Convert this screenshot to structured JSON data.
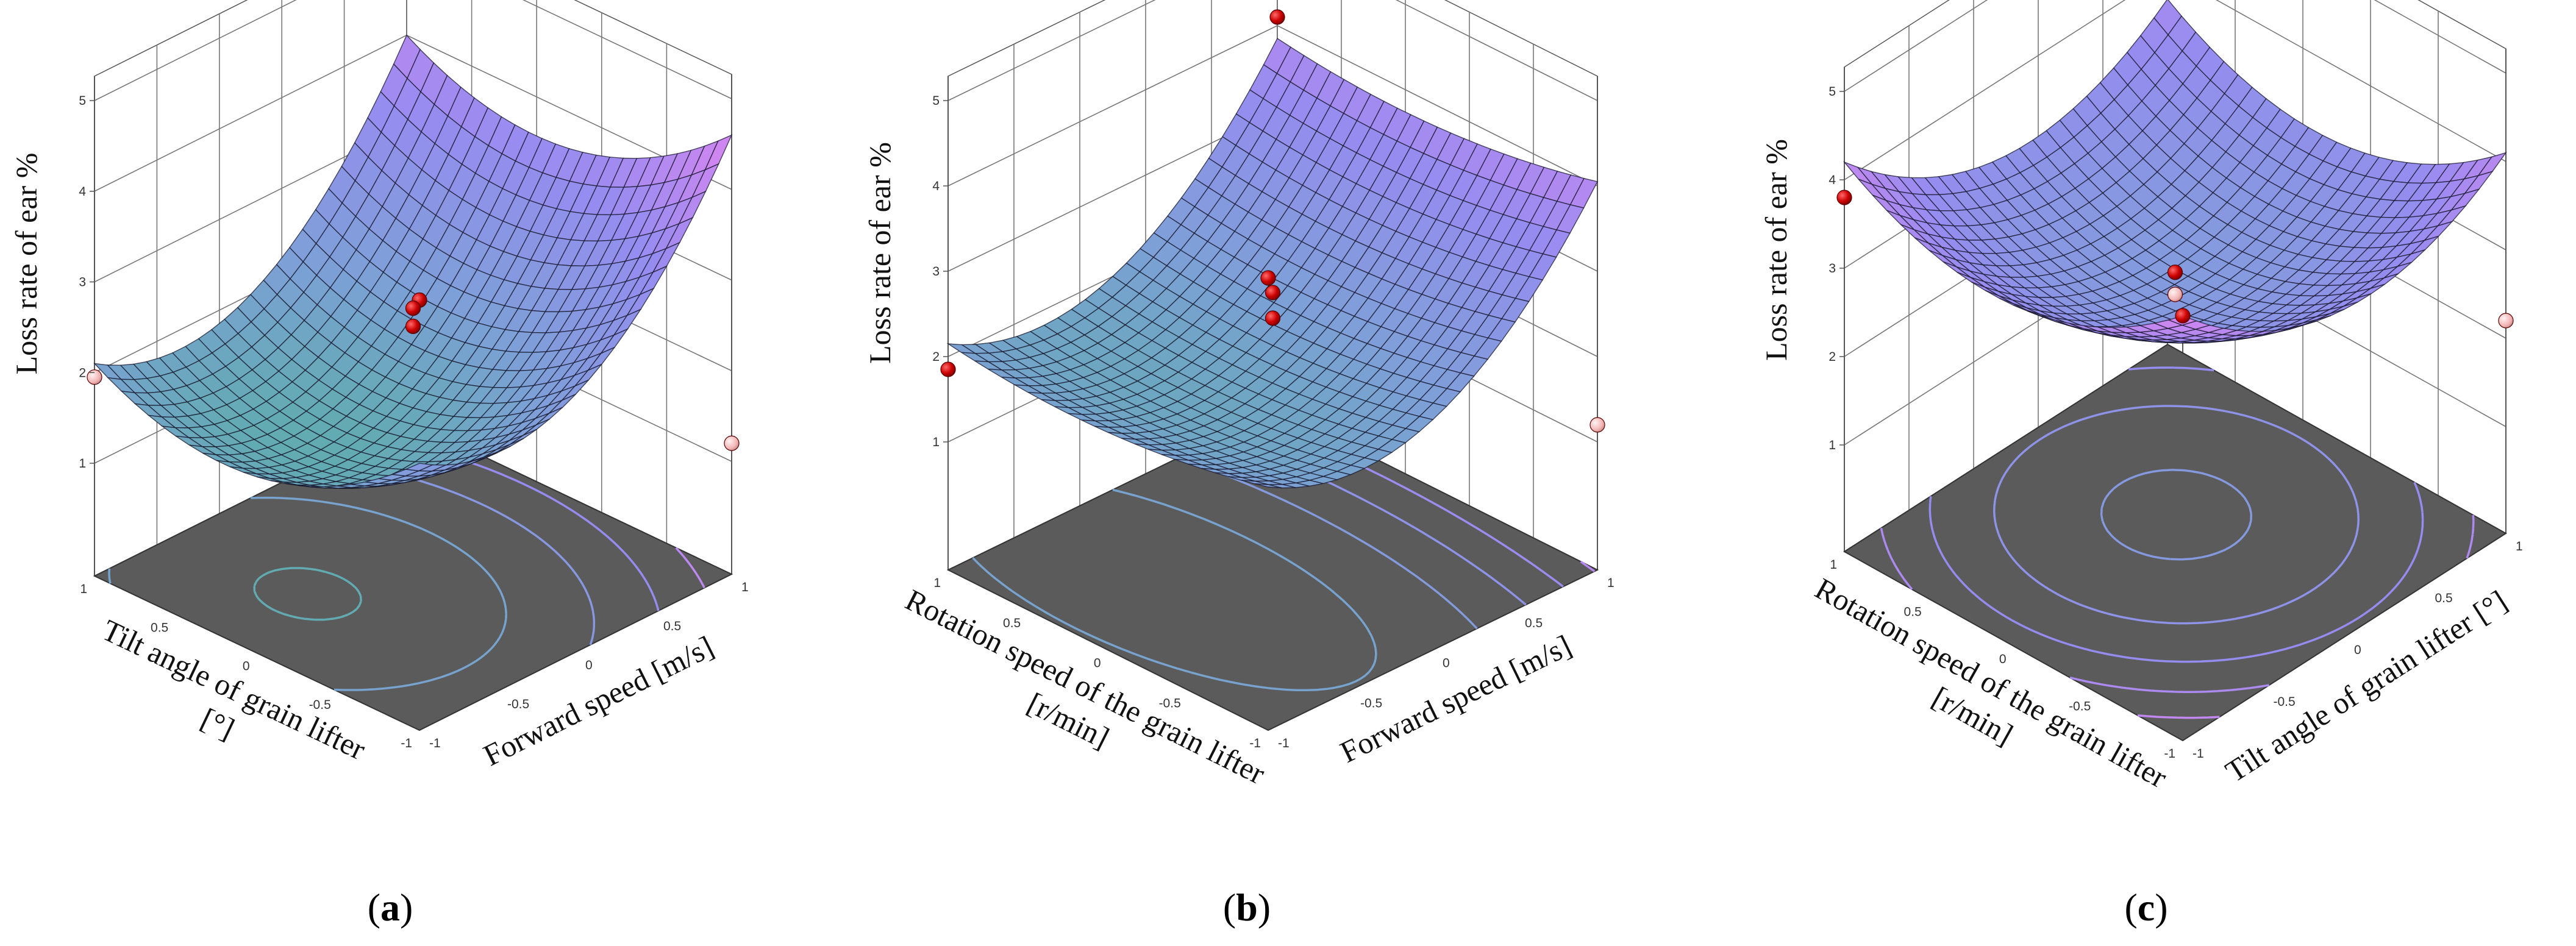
{
  "chart_data": [
    {
      "type": "surface3d",
      "panel_label": "a",
      "xlabel": "Forward speed [m/s]",
      "ylabel": "Tilt angle of grain lifter [°]",
      "zlabel": "Loss rate of ear %",
      "x_ticks": [
        "-1",
        "-0.5",
        "0",
        "0.5",
        "1"
      ],
      "y_ticks": [
        "-1",
        "-0.5",
        "0",
        "0.5",
        "1"
      ],
      "z_ticks": [
        "1",
        "2",
        "3",
        "4",
        "5"
      ],
      "xlim": [
        -1,
        1
      ],
      "ylim": [
        -1,
        1
      ],
      "zlim": [
        1,
        5
      ],
      "surface_model": {
        "c": 1.6,
        "x": 0.95,
        "y": -0.3,
        "xy": 0.0,
        "xx": 1.05,
        "yy": 0.7
      },
      "design_points": [
        {
          "x": 1,
          "y": 1,
          "z": 4.7,
          "above": true
        },
        {
          "x": -1,
          "y": -1,
          "z": 4.5,
          "above": true
        },
        {
          "x": -1,
          "y": 1,
          "z": 1.95,
          "above": false
        },
        {
          "x": 1,
          "y": -1,
          "z": 1.2,
          "above": false
        },
        {
          "x": 0,
          "y": 0,
          "z": 2.7,
          "above": true
        },
        {
          "x": 0,
          "y": 0,
          "z": 2.5,
          "above": true
        }
      ],
      "contour_levels": [
        1.4,
        2.0,
        2.7,
        3.4,
        4.1
      ]
    },
    {
      "type": "surface3d",
      "panel_label": "b",
      "xlabel": "Forward speed [m/s]",
      "ylabel": "Rotation speed of the grain lifter [r/min]",
      "zlabel": "Loss rate of ear %",
      "x_ticks": [
        "-1",
        "-0.5",
        "0",
        "0.5",
        "1"
      ],
      "y_ticks": [
        "-1",
        "-0.5",
        "0",
        "0.5",
        "1"
      ],
      "z_ticks": [
        "1",
        "2",
        "3",
        "4",
        "5"
      ],
      "xlim": [
        -1,
        1
      ],
      "ylim": [
        -1,
        1
      ],
      "zlim": [
        1,
        5
      ],
      "surface_model": {
        "c": 1.9,
        "x": 0.85,
        "y": -0.1,
        "xy": 0.0,
        "xx": 1.0,
        "yy": 0.2
      },
      "design_points": [
        {
          "x": 1,
          "y": 1,
          "z": 4.1,
          "above": true
        },
        {
          "x": -1,
          "y": -1,
          "z": 4.8,
          "above": true
        },
        {
          "x": -1,
          "y": 1,
          "z": 1.85,
          "above": true
        },
        {
          "x": 1,
          "y": -1,
          "z": 1.2,
          "above": false
        },
        {
          "x": 0,
          "y": 0,
          "z": 2.75,
          "above": true
        },
        {
          "x": 0,
          "y": 0,
          "z": 2.45,
          "above": true
        }
      ],
      "contour_levels": [
        1.5,
        2.0,
        2.5,
        3.0,
        3.5,
        4.0
      ]
    },
    {
      "type": "surface3d",
      "panel_label": "c",
      "xlabel": "Tilt angle of grain lifter [°]",
      "ylabel": "Rotation speed of the grain lifter [r/min]",
      "zlabel": "Loss rate of ear %",
      "x_ticks": [
        "-1",
        "-0.5",
        "0",
        "0.5",
        "1"
      ],
      "y_ticks": [
        "-1",
        "-0.5",
        "0",
        "0.5",
        "1"
      ],
      "z_ticks": [
        "1",
        "2",
        "3",
        "4",
        "5"
      ],
      "xlim": [
        -1,
        1
      ],
      "ylim": [
        -1,
        1
      ],
      "zlim": [
        1,
        5
      ],
      "surface_model": {
        "c": 2.55,
        "x": -0.25,
        "y": -0.2,
        "xy": 0.0,
        "xx": 0.85,
        "yy": 0.75
      },
      "design_points": [
        {
          "x": 1,
          "y": 1,
          "z": 3.8,
          "above": true
        },
        {
          "x": -1,
          "y": -1,
          "z": 4.6,
          "above": true
        },
        {
          "x": -1,
          "y": 1,
          "z": 3.8,
          "above": true
        },
        {
          "x": 1,
          "y": -1,
          "z": 2.2,
          "above": false
        },
        {
          "x": 0,
          "y": 0,
          "z": 2.85,
          "above": true
        },
        {
          "x": 0,
          "y": 0,
          "z": 2.6,
          "above": false
        }
      ],
      "contour_levels": [
        2.6,
        3.0,
        3.4,
        3.8,
        4.2
      ]
    }
  ]
}
